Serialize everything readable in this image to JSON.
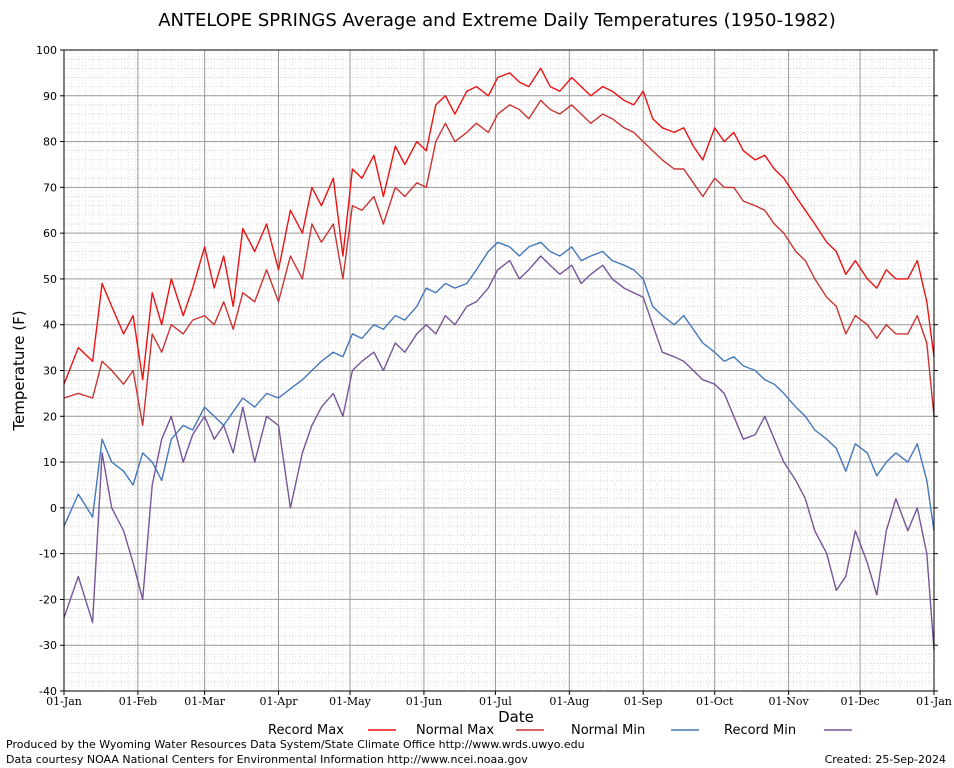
{
  "chart_data": {
    "type": "line",
    "title": "ANTELOPE SPRINGS Average and Extreme Daily Temperatures (1950-1982)",
    "xlabel": "Date",
    "ylabel": "Temperature (F)",
    "ylim": [
      -40,
      100
    ],
    "y_ticks": [
      100,
      90,
      80,
      70,
      60,
      50,
      40,
      30,
      20,
      10,
      0,
      -10,
      -20,
      -30,
      -40
    ],
    "x_ticks": [
      {
        "label": "01-Jan",
        "day": 0
      },
      {
        "label": "01-Feb",
        "day": 31
      },
      {
        "label": "01-Mar",
        "day": 59
      },
      {
        "label": "01-Apr",
        "day": 90
      },
      {
        "label": "01-May",
        "day": 120
      },
      {
        "label": "01-Jun",
        "day": 151
      },
      {
        "label": "01-Jul",
        "day": 181
      },
      {
        "label": "01-Aug",
        "day": 212
      },
      {
        "label": "01-Sep",
        "day": 243
      },
      {
        "label": "01-Oct",
        "day": 273
      },
      {
        "label": "01-Nov",
        "day": 304
      },
      {
        "label": "01-Dec",
        "day": 334
      },
      {
        "label": "01-Jan",
        "day": 365
      }
    ],
    "xlim_days": [
      0,
      365
    ],
    "grid": true,
    "legend_position": "bottom",
    "series": [
      {
        "name": "Record Max",
        "color": "#ee1111",
        "x_days": [
          0,
          6,
          12,
          16,
          20,
          25,
          29,
          33,
          37,
          41,
          45,
          50,
          54,
          59,
          63,
          67,
          71,
          75,
          80,
          85,
          90,
          95,
          100,
          104,
          108,
          113,
          117,
          121,
          125,
          130,
          134,
          139,
          143,
          148,
          152,
          156,
          160,
          164,
          169,
          173,
          178,
          182,
          187,
          191,
          195,
          200,
          204,
          208,
          213,
          217,
          221,
          226,
          230,
          235,
          239,
          243,
          247,
          251,
          256,
          260,
          264,
          268,
          273,
          277,
          281,
          285,
          290,
          294,
          298,
          302,
          307,
          311,
          315,
          320,
          324,
          328,
          332,
          337,
          341,
          345,
          349,
          354,
          358,
          362,
          365
        ],
        "values": [
          27,
          35,
          32,
          49,
          44,
          38,
          42,
          28,
          47,
          40,
          50,
          42,
          48,
          57,
          48,
          55,
          44,
          61,
          56,
          62,
          52,
          65,
          60,
          70,
          66,
          72,
          55,
          74,
          72,
          77,
          68,
          79,
          75,
          80,
          78,
          88,
          90,
          86,
          91,
          92,
          90,
          94,
          95,
          93,
          92,
          96,
          92,
          91,
          94,
          92,
          90,
          92,
          91,
          89,
          88,
          91,
          85,
          83,
          82,
          83,
          79,
          76,
          83,
          80,
          82,
          78,
          76,
          77,
          74,
          72,
          68,
          65,
          62,
          58,
          56,
          51,
          54,
          50,
          48,
          52,
          50,
          50,
          54,
          45,
          33
        ]
      },
      {
        "name": "Normal Max",
        "color": "#cc3333",
        "x_days": [
          0,
          6,
          12,
          16,
          20,
          25,
          29,
          33,
          37,
          41,
          45,
          50,
          54,
          59,
          63,
          67,
          71,
          75,
          80,
          85,
          90,
          95,
          100,
          104,
          108,
          113,
          117,
          121,
          125,
          130,
          134,
          139,
          143,
          148,
          152,
          156,
          160,
          164,
          169,
          173,
          178,
          182,
          187,
          191,
          195,
          200,
          204,
          208,
          213,
          217,
          221,
          226,
          230,
          235,
          239,
          243,
          247,
          251,
          256,
          260,
          264,
          268,
          273,
          277,
          281,
          285,
          290,
          294,
          298,
          302,
          307,
          311,
          315,
          320,
          324,
          328,
          332,
          337,
          341,
          345,
          349,
          354,
          358,
          362,
          365
        ],
        "values": [
          24,
          25,
          24,
          32,
          30,
          27,
          30,
          18,
          38,
          34,
          40,
          38,
          41,
          42,
          40,
          45,
          39,
          47,
          45,
          52,
          45,
          55,
          50,
          62,
          58,
          62,
          50,
          66,
          65,
          68,
          62,
          70,
          68,
          71,
          70,
          80,
          84,
          80,
          82,
          84,
          82,
          86,
          88,
          87,
          85,
          89,
          87,
          86,
          88,
          86,
          84,
          86,
          85,
          83,
          82,
          80,
          78,
          76,
          74,
          74,
          71,
          68,
          72,
          70,
          70,
          67,
          66,
          65,
          62,
          60,
          56,
          54,
          50,
          46,
          44,
          38,
          42,
          40,
          37,
          40,
          38,
          38,
          42,
          36,
          20
        ]
      },
      {
        "name": "Normal Min",
        "color": "#4477bb",
        "x_days": [
          0,
          6,
          12,
          16,
          20,
          25,
          29,
          33,
          37,
          41,
          45,
          50,
          54,
          59,
          63,
          67,
          71,
          75,
          80,
          85,
          90,
          95,
          100,
          104,
          108,
          113,
          117,
          121,
          125,
          130,
          134,
          139,
          143,
          148,
          152,
          156,
          160,
          164,
          169,
          173,
          178,
          182,
          187,
          191,
          195,
          200,
          204,
          208,
          213,
          217,
          221,
          226,
          230,
          235,
          239,
          243,
          247,
          251,
          256,
          260,
          264,
          268,
          273,
          277,
          281,
          285,
          290,
          294,
          298,
          302,
          307,
          311,
          315,
          320,
          324,
          328,
          332,
          337,
          341,
          345,
          349,
          354,
          358,
          362,
          365
        ],
        "values": [
          -4,
          3,
          -2,
          15,
          10,
          8,
          5,
          12,
          10,
          6,
          15,
          18,
          17,
          22,
          20,
          18,
          21,
          24,
          22,
          25,
          24,
          26,
          28,
          30,
          32,
          34,
          33,
          38,
          37,
          40,
          39,
          42,
          41,
          44,
          48,
          47,
          49,
          48,
          49,
          52,
          56,
          58,
          57,
          55,
          57,
          58,
          56,
          55,
          57,
          54,
          55,
          56,
          54,
          53,
          52,
          50,
          44,
          42,
          40,
          42,
          39,
          36,
          34,
          32,
          33,
          31,
          30,
          28,
          27,
          25,
          22,
          20,
          17,
          15,
          13,
          8,
          14,
          12,
          7,
          10,
          12,
          10,
          14,
          6,
          -5
        ]
      },
      {
        "name": "Record Min",
        "color": "#775599",
        "x_days": [
          0,
          6,
          12,
          16,
          20,
          25,
          29,
          33,
          37,
          41,
          45,
          50,
          54,
          59,
          63,
          67,
          71,
          75,
          80,
          85,
          90,
          95,
          100,
          104,
          108,
          113,
          117,
          121,
          125,
          130,
          134,
          139,
          143,
          148,
          152,
          156,
          160,
          164,
          169,
          173,
          178,
          182,
          187,
          191,
          195,
          200,
          204,
          208,
          213,
          217,
          221,
          226,
          230,
          235,
          239,
          243,
          247,
          251,
          256,
          260,
          264,
          268,
          273,
          277,
          281,
          285,
          290,
          294,
          298,
          302,
          307,
          311,
          315,
          320,
          324,
          328,
          332,
          337,
          341,
          345,
          349,
          354,
          358,
          362,
          365
        ],
        "values": [
          -24,
          -15,
          -25,
          12,
          0,
          -5,
          -12,
          -20,
          5,
          15,
          20,
          10,
          16,
          20,
          15,
          18,
          12,
          22,
          10,
          20,
          18,
          0,
          12,
          18,
          22,
          25,
          20,
          30,
          32,
          34,
          30,
          36,
          34,
          38,
          40,
          38,
          42,
          40,
          44,
          45,
          48,
          52,
          54,
          50,
          52,
          55,
          53,
          51,
          53,
          49,
          51,
          53,
          50,
          48,
          47,
          46,
          40,
          34,
          33,
          32,
          30,
          28,
          27,
          25,
          20,
          15,
          16,
          20,
          15,
          10,
          6,
          2,
          -5,
          -10,
          -18,
          -15,
          -5,
          -12,
          -19,
          -5,
          2,
          -5,
          0,
          -10,
          -31
        ]
      }
    ]
  },
  "legend": {
    "items": [
      {
        "label": "Record Max",
        "color": "#ee1111"
      },
      {
        "label": "Normal Max",
        "color": "#cc3333"
      },
      {
        "label": "Normal Min",
        "color": "#4477bb"
      },
      {
        "label": "Record Min",
        "color": "#775599"
      }
    ]
  },
  "footer": {
    "produced_by": "Produced by the Wyoming Water Resources Data System/State Climate Office http://www.wrds.uwyo.edu",
    "courtesy": "Data courtesy NOAA National Centers for Environmental Information http://www.ncei.noaa.gov",
    "created": "Created:  25-Sep-2024"
  }
}
